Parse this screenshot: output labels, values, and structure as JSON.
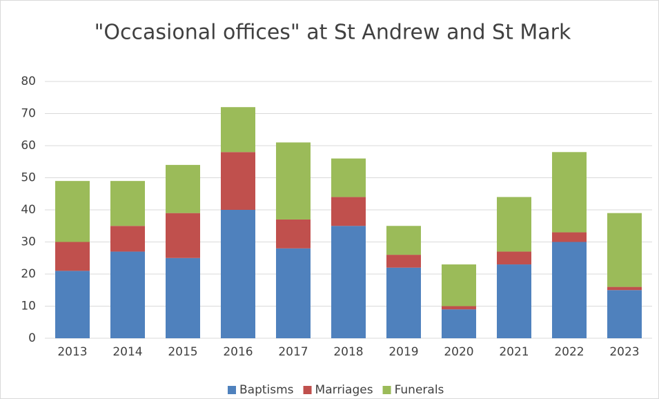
{
  "chart_data": {
    "type": "stacked-bar",
    "title": "\"Occasional offices\" at St Andrew and St Mark",
    "categories": [
      "2013",
      "2014",
      "2015",
      "2016",
      "2017",
      "2018",
      "2019",
      "2020",
      "2021",
      "2022",
      "2023"
    ],
    "series": [
      {
        "name": "Baptisms",
        "color": "#4f81bd",
        "values": [
          21,
          27,
          25,
          40,
          28,
          35,
          22,
          9,
          23,
          30,
          15
        ]
      },
      {
        "name": "Marriages",
        "color": "#c0504d",
        "values": [
          9,
          8,
          14,
          18,
          9,
          9,
          4,
          1,
          4,
          3,
          1
        ]
      },
      {
        "name": "Funerals",
        "color": "#9bbb59",
        "values": [
          19,
          14,
          15,
          14,
          24,
          12,
          9,
          13,
          17,
          25,
          23
        ]
      }
    ],
    "ylim": [
      0,
      80
    ],
    "yticks": [
      0,
      10,
      20,
      30,
      40,
      50,
      60,
      70,
      80
    ],
    "grid": true,
    "legend": "bottom"
  }
}
